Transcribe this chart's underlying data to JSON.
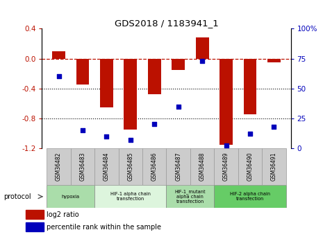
{
  "title": "GDS2018 / 1183941_1",
  "samples": [
    "GSM36482",
    "GSM36483",
    "GSM36484",
    "GSM36485",
    "GSM36486",
    "GSM36487",
    "GSM36488",
    "GSM36489",
    "GSM36490",
    "GSM36491"
  ],
  "log2_ratio": [
    0.1,
    -0.35,
    -0.65,
    -0.95,
    -0.48,
    -0.15,
    0.28,
    -1.15,
    -0.75,
    -0.05
  ],
  "percentile_rank": [
    60,
    15,
    10,
    7,
    20,
    35,
    73,
    2,
    12,
    18
  ],
  "ylim_left": [
    -1.2,
    0.4
  ],
  "ylim_right": [
    0,
    100
  ],
  "yticks_left": [
    0.4,
    0.0,
    -0.4,
    -0.8,
    -1.2
  ],
  "yticks_right": [
    100,
    75,
    50,
    25,
    0
  ],
  "bar_color": "#bb1100",
  "dot_color": "#0000bb",
  "hline_y": 0,
  "dotted_lines": [
    -0.4,
    -0.8
  ],
  "protocols": [
    {
      "label": "hypoxia",
      "start": 0,
      "end": 2,
      "color": "#aaddaa"
    },
    {
      "label": "HIF-1 alpha chain\ntransfection",
      "start": 2,
      "end": 5,
      "color": "#ddf5dd"
    },
    {
      "label": "HIF-1_mutant\nalpha chain\ntransfection",
      "start": 5,
      "end": 7,
      "color": "#aaddaa"
    },
    {
      "label": "HIF-2 alpha chain\ntransfection",
      "start": 7,
      "end": 10,
      "color": "#66cc66"
    }
  ],
  "legend_items": [
    {
      "label": "log2 ratio",
      "color": "#bb1100"
    },
    {
      "label": "percentile rank within the sample",
      "color": "#0000bb"
    }
  ],
  "bar_width": 0.55,
  "axis_label_color_left": "#bb1100",
  "axis_label_color_right": "#0000bb",
  "background_color": "#ffffff",
  "protocol_label": "protocol"
}
